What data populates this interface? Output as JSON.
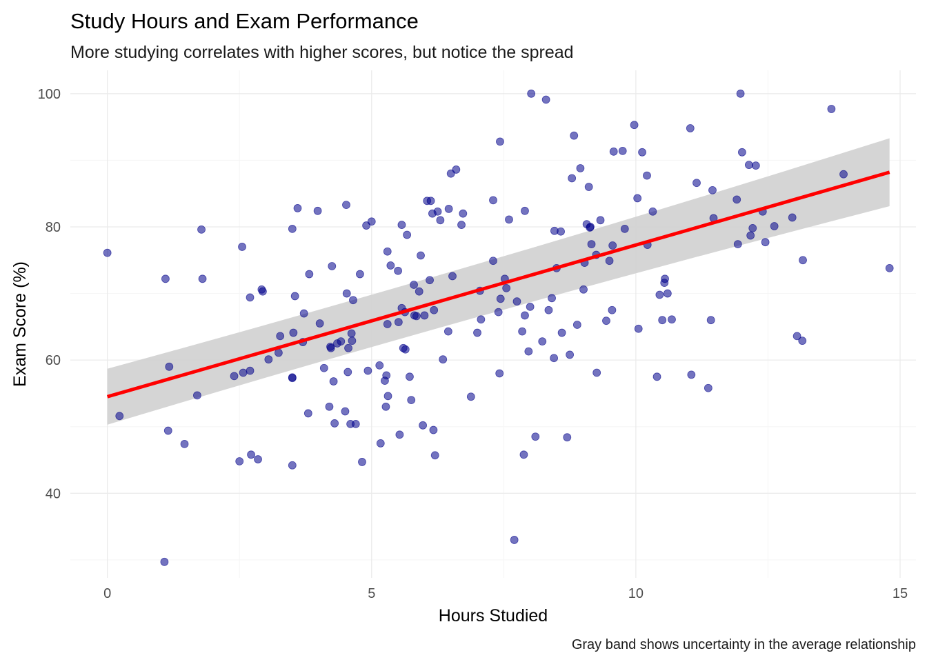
{
  "chart_data": {
    "type": "scatter",
    "title": "Study Hours and Exam Performance",
    "subtitle": "More studying correlates with higher scores, but notice the spread",
    "xlabel": "Hours Studied",
    "ylabel": "Exam Score (%)",
    "caption": "Gray band shows uncertainty in the average relationship",
    "xlim": [
      -0.7,
      15.3
    ],
    "ylim": [
      27.3,
      103.5
    ],
    "x_ticks": [
      0,
      5,
      10,
      15
    ],
    "x_tick_labels": [
      "0",
      "5",
      "10",
      "15"
    ],
    "y_ticks": [
      40,
      60,
      80,
      100
    ],
    "y_tick_labels": [
      "40",
      "60",
      "80",
      "100"
    ],
    "grid": true,
    "colors": {
      "points": "#00008B",
      "trend_line": "#FF0000",
      "band": "#D3D3D3",
      "grid_major": "#EBEBEB",
      "grid_minor": "#F5F5F5"
    },
    "trend": {
      "x_start": 0.0,
      "y_start": 54.5,
      "x_end": 14.8,
      "y_end": 88.2,
      "band_start": [
        50.3,
        58.7
      ],
      "band_end": [
        83.1,
        93.3
      ]
    },
    "points": [
      [
        0.0,
        76.1
      ],
      [
        0.23,
        51.6
      ],
      [
        1.08,
        29.7
      ],
      [
        1.1,
        72.2
      ],
      [
        1.17,
        59.0
      ],
      [
        1.15,
        49.4
      ],
      [
        1.46,
        47.4
      ],
      [
        1.7,
        54.7
      ],
      [
        1.78,
        79.6
      ],
      [
        1.8,
        72.2
      ],
      [
        2.4,
        57.6
      ],
      [
        2.5,
        44.8
      ],
      [
        2.55,
        77.0
      ],
      [
        2.57,
        58.1
      ],
      [
        2.7,
        58.4
      ],
      [
        2.7,
        69.4
      ],
      [
        2.72,
        45.8
      ],
      [
        2.85,
        45.1
      ],
      [
        2.92,
        70.6
      ],
      [
        2.94,
        70.3
      ],
      [
        3.05,
        60.1
      ],
      [
        3.24,
        61.1
      ],
      [
        3.27,
        63.6
      ],
      [
        3.5,
        57.4
      ],
      [
        3.5,
        57.3
      ],
      [
        3.5,
        79.7
      ],
      [
        3.52,
        64.1
      ],
      [
        3.55,
        69.6
      ],
      [
        3.6,
        82.8
      ],
      [
        3.7,
        62.7
      ],
      [
        3.72,
        67.0
      ],
      [
        3.5,
        44.2
      ],
      [
        3.8,
        52.0
      ],
      [
        3.82,
        72.9
      ],
      [
        3.98,
        82.4
      ],
      [
        4.02,
        65.5
      ],
      [
        4.1,
        58.8
      ],
      [
        4.2,
        53.0
      ],
      [
        4.22,
        62.0
      ],
      [
        4.25,
        74.1
      ],
      [
        4.23,
        61.8
      ],
      [
        4.28,
        56.8
      ],
      [
        4.3,
        50.5
      ],
      [
        4.35,
        62.5
      ],
      [
        4.42,
        62.8
      ],
      [
        4.5,
        52.3
      ],
      [
        4.52,
        83.3
      ],
      [
        4.53,
        70.0
      ],
      [
        4.55,
        58.2
      ],
      [
        4.56,
        61.8
      ],
      [
        4.6,
        50.4
      ],
      [
        4.62,
        64.0
      ],
      [
        4.63,
        62.9
      ],
      [
        4.65,
        69.0
      ],
      [
        4.7,
        50.4
      ],
      [
        4.78,
        72.9
      ],
      [
        4.82,
        44.7
      ],
      [
        4.9,
        80.2
      ],
      [
        4.93,
        58.4
      ],
      [
        5.0,
        80.8
      ],
      [
        5.15,
        59.2
      ],
      [
        5.17,
        47.5
      ],
      [
        5.25,
        56.9
      ],
      [
        5.27,
        53.0
      ],
      [
        5.28,
        57.7
      ],
      [
        5.3,
        65.4
      ],
      [
        5.31,
        54.6
      ],
      [
        5.3,
        76.3
      ],
      [
        5.36,
        74.2
      ],
      [
        5.5,
        73.4
      ],
      [
        5.51,
        65.7
      ],
      [
        5.53,
        48.8
      ],
      [
        5.57,
        67.8
      ],
      [
        5.57,
        80.3
      ],
      [
        5.6,
        61.8
      ],
      [
        5.63,
        67.2
      ],
      [
        5.64,
        61.6
      ],
      [
        5.67,
        78.8
      ],
      [
        5.72,
        57.5
      ],
      [
        5.75,
        54.0
      ],
      [
        5.8,
        71.3
      ],
      [
        5.81,
        66.7
      ],
      [
        5.85,
        66.6
      ],
      [
        5.9,
        70.3
      ],
      [
        5.93,
        75.7
      ],
      [
        5.97,
        50.2
      ],
      [
        6.0,
        66.7
      ],
      [
        6.05,
        83.9
      ],
      [
        6.1,
        72.0
      ],
      [
        6.12,
        83.9
      ],
      [
        6.15,
        82.0
      ],
      [
        6.17,
        49.5
      ],
      [
        6.18,
        67.5
      ],
      [
        6.2,
        45.7
      ],
      [
        6.25,
        82.3
      ],
      [
        6.3,
        81.0
      ],
      [
        6.35,
        60.1
      ],
      [
        6.45,
        64.3
      ],
      [
        6.46,
        82.7
      ],
      [
        6.5,
        88.0
      ],
      [
        6.53,
        72.6
      ],
      [
        6.6,
        88.6
      ],
      [
        6.7,
        80.3
      ],
      [
        6.73,
        82.0
      ],
      [
        6.88,
        54.5
      ],
      [
        7.0,
        64.1
      ],
      [
        7.05,
        70.4
      ],
      [
        7.07,
        66.1
      ],
      [
        7.3,
        74.9
      ],
      [
        7.3,
        84.0
      ],
      [
        7.4,
        67.2
      ],
      [
        7.42,
        58.0
      ],
      [
        7.43,
        92.8
      ],
      [
        7.44,
        69.2
      ],
      [
        7.52,
        72.2
      ],
      [
        7.55,
        70.8
      ],
      [
        7.6,
        81.1
      ],
      [
        7.7,
        33.0
      ],
      [
        7.75,
        68.8
      ],
      [
        7.85,
        64.3
      ],
      [
        7.88,
        45.8
      ],
      [
        7.9,
        82.4
      ],
      [
        7.9,
        66.7
      ],
      [
        7.97,
        61.3
      ],
      [
        8.0,
        68.0
      ],
      [
        8.02,
        100.0
      ],
      [
        8.1,
        48.5
      ],
      [
        8.23,
        62.8
      ],
      [
        8.3,
        99.1
      ],
      [
        8.35,
        67.5
      ],
      [
        8.41,
        69.3
      ],
      [
        8.45,
        60.3
      ],
      [
        8.46,
        79.4
      ],
      [
        8.5,
        73.8
      ],
      [
        8.58,
        79.3
      ],
      [
        8.6,
        64.1
      ],
      [
        8.7,
        48.4
      ],
      [
        8.75,
        60.8
      ],
      [
        8.79,
        87.3
      ],
      [
        8.83,
        93.7
      ],
      [
        8.89,
        65.3
      ],
      [
        8.95,
        88.8
      ],
      [
        9.01,
        70.6
      ],
      [
        9.03,
        74.6
      ],
      [
        9.07,
        80.4
      ],
      [
        9.11,
        86.0
      ],
      [
        9.13,
        79.9
      ],
      [
        9.14,
        80.0
      ],
      [
        9.16,
        77.4
      ],
      [
        9.25,
        75.8
      ],
      [
        9.26,
        58.1
      ],
      [
        9.33,
        81.0
      ],
      [
        9.44,
        65.9
      ],
      [
        9.5,
        74.9
      ],
      [
        9.55,
        67.5
      ],
      [
        9.56,
        77.2
      ],
      [
        9.58,
        91.3
      ],
      [
        9.75,
        91.4
      ],
      [
        9.79,
        79.7
      ],
      [
        9.97,
        95.3
      ],
      [
        10.03,
        84.3
      ],
      [
        10.05,
        64.7
      ],
      [
        10.12,
        91.2
      ],
      [
        10.21,
        87.7
      ],
      [
        10.22,
        77.3
      ],
      [
        10.32,
        82.3
      ],
      [
        10.4,
        57.5
      ],
      [
        10.45,
        69.8
      ],
      [
        10.5,
        66.0
      ],
      [
        10.55,
        72.2
      ],
      [
        10.54,
        71.6
      ],
      [
        10.6,
        70.0
      ],
      [
        10.68,
        66.1
      ],
      [
        11.03,
        94.8
      ],
      [
        11.05,
        57.8
      ],
      [
        11.15,
        86.6
      ],
      [
        11.37,
        55.8
      ],
      [
        11.42,
        66.0
      ],
      [
        11.45,
        85.5
      ],
      [
        11.47,
        81.3
      ],
      [
        11.91,
        84.1
      ],
      [
        11.93,
        77.4
      ],
      [
        12.01,
        91.2
      ],
      [
        12.17,
        78.7
      ],
      [
        12.21,
        79.8
      ],
      [
        12.14,
        89.3
      ],
      [
        12.27,
        89.2
      ],
      [
        12.4,
        82.3
      ],
      [
        12.45,
        77.7
      ],
      [
        12.62,
        80.1
      ],
      [
        12.96,
        81.4
      ],
      [
        13.05,
        63.6
      ],
      [
        13.15,
        62.9
      ],
      [
        13.16,
        75.0
      ],
      [
        13.7,
        97.7
      ],
      [
        11.98,
        100.0
      ],
      [
        13.93,
        87.9
      ],
      [
        14.8,
        73.8
      ]
    ]
  }
}
